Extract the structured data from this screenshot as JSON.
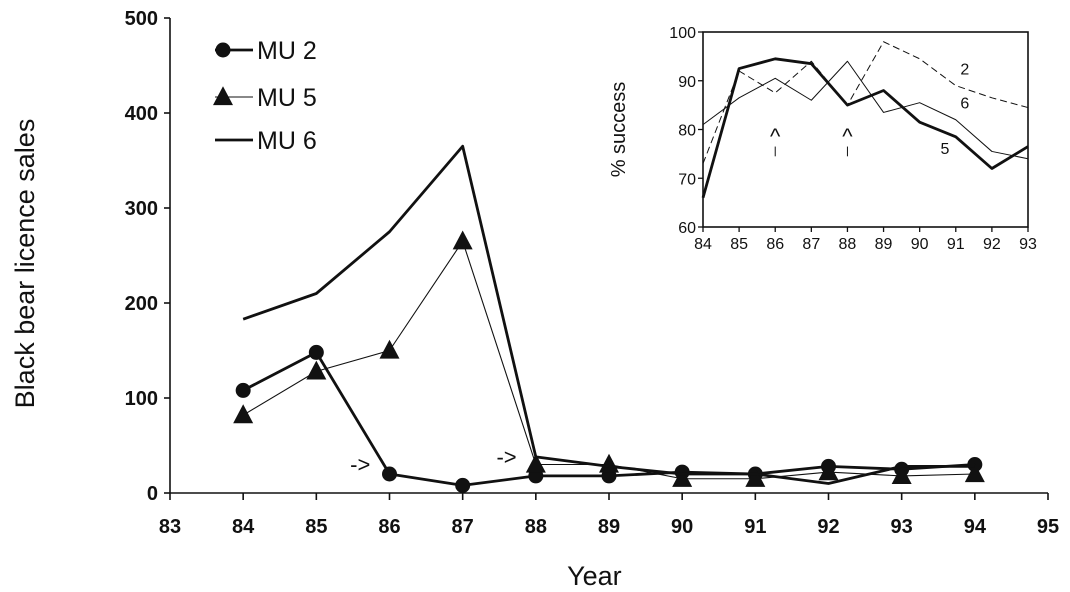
{
  "chart_data": [
    {
      "type": "line",
      "xlabel": "Year",
      "ylabel": "Black bear licence sales",
      "xlim": [
        83,
        95
      ],
      "ylim": [
        0,
        500
      ],
      "x_ticks": [
        "83",
        "84",
        "85",
        "86",
        "87",
        "88",
        "89",
        "90",
        "91",
        "92",
        "93",
        "94",
        "95"
      ],
      "y_ticks": [
        "0",
        "100",
        "200",
        "300",
        "400",
        "500"
      ],
      "legend_position": "top-left",
      "series": [
        {
          "name": "MU 2",
          "marker": "circle",
          "line": "thick",
          "x": [
            84,
            85,
            86,
            87,
            88,
            89,
            90,
            91,
            92,
            93,
            94
          ],
          "y": [
            108,
            148,
            20,
            8,
            18,
            18,
            22,
            20,
            28,
            25,
            30
          ]
        },
        {
          "name": "MU 5",
          "marker": "triangle",
          "line": "thin",
          "x": [
            84,
            85,
            86,
            87,
            88,
            89,
            90,
            91,
            92,
            93,
            94
          ],
          "y": [
            82,
            128,
            150,
            265,
            30,
            30,
            15,
            15,
            22,
            18,
            20
          ]
        },
        {
          "name": "MU 6",
          "marker": "none",
          "line": "thick",
          "x": [
            84,
            85,
            86,
            87,
            88,
            89,
            90,
            91,
            92,
            93,
            94
          ],
          "y": [
            183,
            210,
            275,
            365,
            38,
            28,
            20,
            20,
            10,
            28,
            28
          ]
        }
      ],
      "annotations": [
        {
          "text": "->",
          "x": 85.6,
          "y": 22
        },
        {
          "text": "->",
          "x": 87.6,
          "y": 30
        }
      ]
    },
    {
      "type": "line",
      "position": "inset-top-right",
      "ylabel": "% success",
      "xlim": [
        84,
        93
      ],
      "ylim": [
        60,
        100
      ],
      "x_ticks": [
        "84",
        "85",
        "86",
        "87",
        "88",
        "89",
        "90",
        "91",
        "92",
        "93"
      ],
      "y_ticks": [
        "60",
        "70",
        "80",
        "90",
        "100"
      ],
      "series": [
        {
          "label": "2",
          "style": "dashed",
          "x": [
            84,
            85,
            86,
            87,
            88,
            89,
            90,
            91,
            92,
            93
          ],
          "y": [
            73,
            92,
            87.5,
            94,
            85,
            98,
            94.5,
            89,
            86.5,
            84.5
          ]
        },
        {
          "label": "6",
          "style": "thin",
          "x": [
            84,
            85,
            86,
            87,
            88,
            89,
            90,
            91,
            92,
            93
          ],
          "y": [
            81,
            86.5,
            90.5,
            86,
            94,
            83.5,
            85.5,
            82,
            75.5,
            74
          ]
        },
        {
          "label": "5",
          "style": "thick",
          "x": [
            84,
            85,
            86,
            87,
            88,
            89,
            90,
            91,
            92,
            93
          ],
          "y": [
            66,
            92.5,
            94.5,
            93.5,
            85,
            88,
            81.5,
            78.5,
            72,
            76.5
          ]
        }
      ],
      "annotations": [
        {
          "text": "^",
          "x": 86
        },
        {
          "text": "^",
          "x": 88
        }
      ]
    }
  ]
}
